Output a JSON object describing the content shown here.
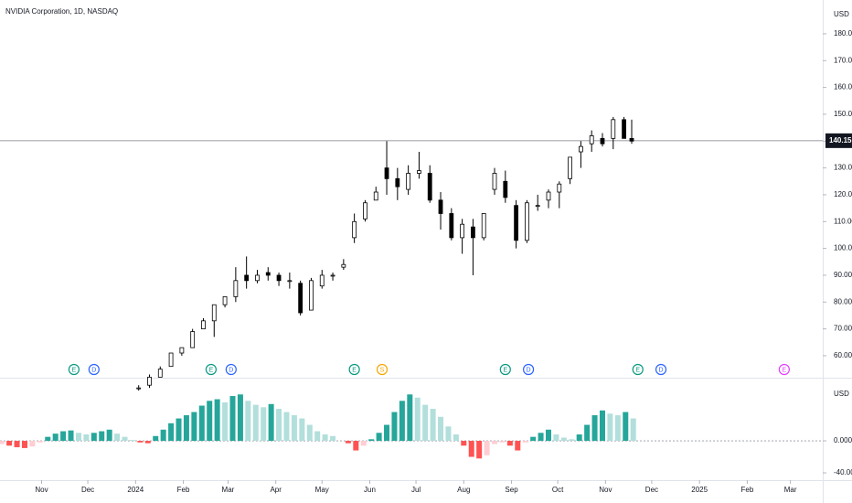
{
  "chart_data": [
    {
      "type": "candlestick",
      "title": "NVIDIA Corporation, 1D, NASDAQ",
      "unit": "USD",
      "up_color": "#ffffff",
      "down_color": "#000000",
      "outline_color": "#000000",
      "x": [
        94,
        101,
        108,
        115,
        122,
        129,
        136,
        143,
        150,
        157,
        164,
        171,
        178,
        185,
        192,
        199,
        206,
        213,
        220,
        227,
        234,
        241,
        248,
        255,
        262,
        269,
        276,
        283,
        290,
        297,
        304,
        311,
        318,
        325,
        332,
        339,
        346,
        353,
        360,
        367,
        374,
        381,
        388,
        395,
        402,
        409,
        414
      ],
      "open": [
        48,
        49,
        52,
        56,
        61,
        63,
        70,
        73,
        79,
        82,
        90,
        88,
        91,
        90,
        88,
        87,
        77,
        86,
        90,
        93,
        104,
        111,
        118,
        130,
        126,
        122,
        128,
        128,
        118,
        113,
        104,
        108,
        104,
        122,
        125,
        116,
        103,
        116,
        118,
        121,
        126,
        136,
        139,
        141,
        141,
        148,
        141
      ],
      "high": [
        49,
        53,
        56,
        61,
        63,
        70,
        74,
        79,
        82,
        93,
        97,
        92,
        93,
        91,
        91,
        88,
        89,
        92,
        91,
        96,
        113,
        118,
        123,
        140,
        130,
        131,
        136,
        131,
        121,
        115,
        111,
        111,
        113,
        130,
        129,
        118,
        118,
        120,
        122,
        125,
        134,
        140,
        144,
        143,
        149,
        149,
        148
      ],
      "low": [
        47,
        48,
        52,
        56,
        60,
        63,
        70,
        67,
        78,
        80,
        85,
        87,
        88,
        86,
        85,
        75,
        77,
        85,
        88,
        92,
        102,
        110,
        118,
        120,
        118,
        120,
        126,
        117,
        107,
        103,
        98,
        90,
        103,
        120,
        117,
        100,
        102,
        114,
        115,
        115,
        124,
        130,
        136,
        138,
        137,
        142,
        139
      ],
      "close": [
        48,
        52,
        55,
        61,
        63,
        69,
        73,
        79,
        82,
        88,
        88,
        90,
        90,
        88,
        88,
        76,
        88,
        90,
        90,
        94,
        110,
        117,
        121,
        126,
        123,
        128,
        129,
        118,
        113,
        104,
        109,
        104,
        113,
        128,
        119,
        103,
        117,
        116,
        121,
        124,
        134,
        138,
        142,
        139,
        148,
        141,
        140
      ],
      "xlim": [
        4,
        538
      ],
      "ylim": [
        51.8,
        192.6
      ],
      "yticks": [
        {
          "value": 60,
          "label": "60.00"
        },
        {
          "value": 70,
          "label": "70.00"
        },
        {
          "value": 80,
          "label": "80.00"
        },
        {
          "value": 90,
          "label": "90.00"
        },
        {
          "value": 100,
          "label": "100.00"
        },
        {
          "value": 110,
          "label": "110.00"
        },
        {
          "value": 120,
          "label": "120.00"
        },
        {
          "value": 130,
          "label": "130.00"
        },
        {
          "value": 140,
          "label": "140.00"
        },
        {
          "value": 150,
          "label": "150.00"
        },
        {
          "value": 160,
          "label": "160.00"
        },
        {
          "value": 170,
          "label": "170.00"
        },
        {
          "value": 180,
          "label": "180.00"
        }
      ],
      "last_price": {
        "value": 140.15,
        "label": "140.15"
      },
      "events": [
        {
          "label": "E",
          "x": 52,
          "color": "#089981"
        },
        {
          "label": "D",
          "x": 65,
          "color": "#2962ff"
        },
        {
          "label": "E",
          "x": 141,
          "color": "#089981"
        },
        {
          "label": "D",
          "x": 154,
          "color": "#2962ff"
        },
        {
          "label": "E",
          "x": 234,
          "color": "#089981"
        },
        {
          "label": "S",
          "x": 252,
          "color": "#f7a600"
        },
        {
          "label": "E",
          "x": 332,
          "color": "#089981"
        },
        {
          "label": "D",
          "x": 347,
          "color": "#2962ff"
        },
        {
          "label": "E",
          "x": 418,
          "color": "#089981"
        },
        {
          "label": "D",
          "x": 433,
          "color": "#2962ff"
        },
        {
          "label": "E",
          "x": 513,
          "color": "#e040fb"
        }
      ]
    },
    {
      "type": "histogram",
      "unit": "USD",
      "colors": {
        "rise_pos": "#26a69a",
        "fall_pos": "#b2dfdb",
        "fall_neg": "#ff5252",
        "rise_neg": "#ffcdd2"
      },
      "x": [
        5,
        10,
        15,
        20,
        25,
        30,
        35,
        40,
        45,
        50,
        55,
        60,
        65,
        70,
        75,
        80,
        85,
        90,
        95,
        100,
        105,
        110,
        115,
        120,
        125,
        130,
        135,
        140,
        145,
        150,
        155,
        160,
        165,
        170,
        175,
        180,
        185,
        190,
        195,
        200,
        205,
        210,
        215,
        220,
        225,
        230,
        235,
        240,
        245,
        250,
        255,
        260,
        265,
        270,
        275,
        280,
        285,
        290,
        295,
        300,
        305,
        310,
        315,
        320,
        325,
        330,
        335,
        340,
        345,
        350,
        355,
        360,
        365,
        370,
        375,
        380,
        385,
        390,
        395,
        400,
        405,
        410,
        415
      ],
      "values": [
        -4,
        -6,
        -8,
        -9,
        -7,
        -2,
        5,
        9,
        12,
        13,
        10,
        8,
        10,
        12,
        14,
        9,
        5,
        1,
        -2,
        -3,
        6,
        14,
        22,
        28,
        32,
        36,
        44,
        50,
        52,
        48,
        56,
        58,
        50,
        45,
        42,
        46,
        40,
        36,
        32,
        28,
        20,
        12,
        8,
        6,
        0,
        -3,
        -12,
        -6,
        2,
        10,
        20,
        36,
        50,
        58,
        54,
        45,
        40,
        30,
        18,
        8,
        -6,
        -20,
        -22,
        -18,
        -4,
        -2,
        -6,
        -12,
        -2,
        5,
        10,
        14,
        8,
        4,
        2,
        8,
        20,
        32,
        38,
        34,
        32,
        36,
        28
      ],
      "xlim": [
        4,
        538
      ],
      "ylim": [
        -49.1,
        78.9
      ],
      "yticks": [
        {
          "value": 0,
          "label": "0.0000"
        },
        {
          "value": -40,
          "label": "-40.00"
        }
      ],
      "xticks": [
        {
          "value": 31,
          "label": "Nov"
        },
        {
          "value": 61,
          "label": "Dec"
        },
        {
          "value": 92,
          "label": "2024"
        },
        {
          "value": 123,
          "label": "Feb"
        },
        {
          "value": 152,
          "label": "Mar"
        },
        {
          "value": 183,
          "label": "Apr"
        },
        {
          "value": 213,
          "label": "May"
        },
        {
          "value": 244,
          "label": "Jun"
        },
        {
          "value": 274,
          "label": "Jul"
        },
        {
          "value": 305,
          "label": "Aug"
        },
        {
          "value": 336,
          "label": "Sep"
        },
        {
          "value": 366,
          "label": "Oct"
        },
        {
          "value": 397,
          "label": "Nov"
        },
        {
          "value": 427,
          "label": "Dec"
        },
        {
          "value": 458,
          "label": "2025"
        },
        {
          "value": 489,
          "label": "Feb"
        },
        {
          "value": 517,
          "label": "Mar"
        }
      ]
    }
  ]
}
